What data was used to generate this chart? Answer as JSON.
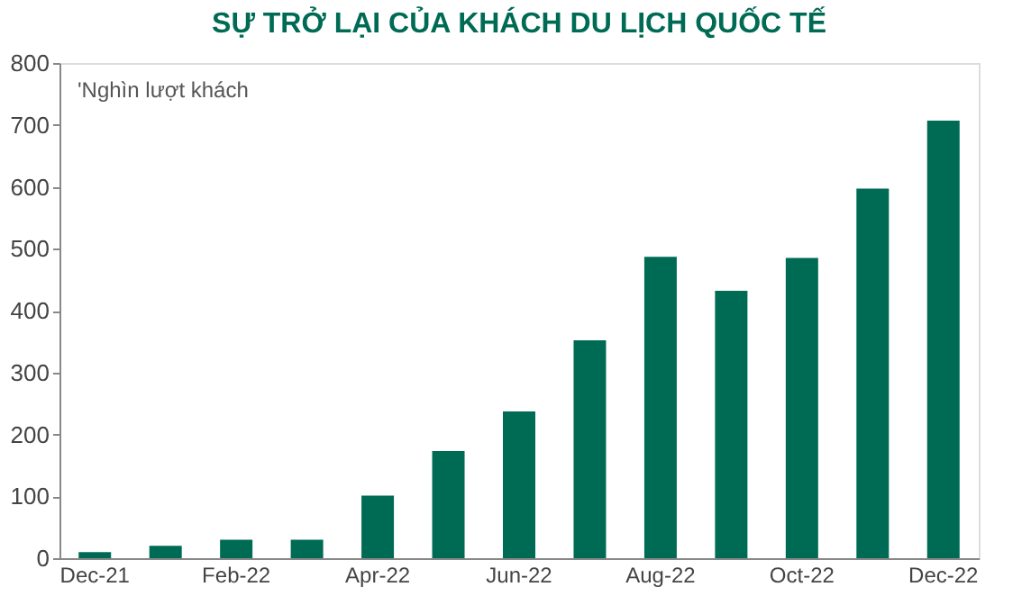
{
  "chart_data": {
    "type": "bar",
    "title": "SỰ TRỞ LẠI CỦA KHÁCH DU LỊCH QUỐC TẾ",
    "annotations": [
      "'Nghìn lượt khách"
    ],
    "categories": [
      "Dec-21",
      null,
      "Feb-22",
      null,
      "Apr-22",
      null,
      "Jun-22",
      null,
      "Aug-22",
      null,
      "Oct-22",
      null,
      "Dec-22"
    ],
    "values": [
      10,
      20,
      30,
      30,
      101,
      173,
      237,
      352,
      487,
      432,
      485,
      597,
      707
    ],
    "color": "#006b54",
    "ylim": [
      0,
      800
    ],
    "yticks": [
      0,
      100,
      200,
      300,
      400,
      500,
      600,
      700,
      800
    ],
    "grid": false
  }
}
